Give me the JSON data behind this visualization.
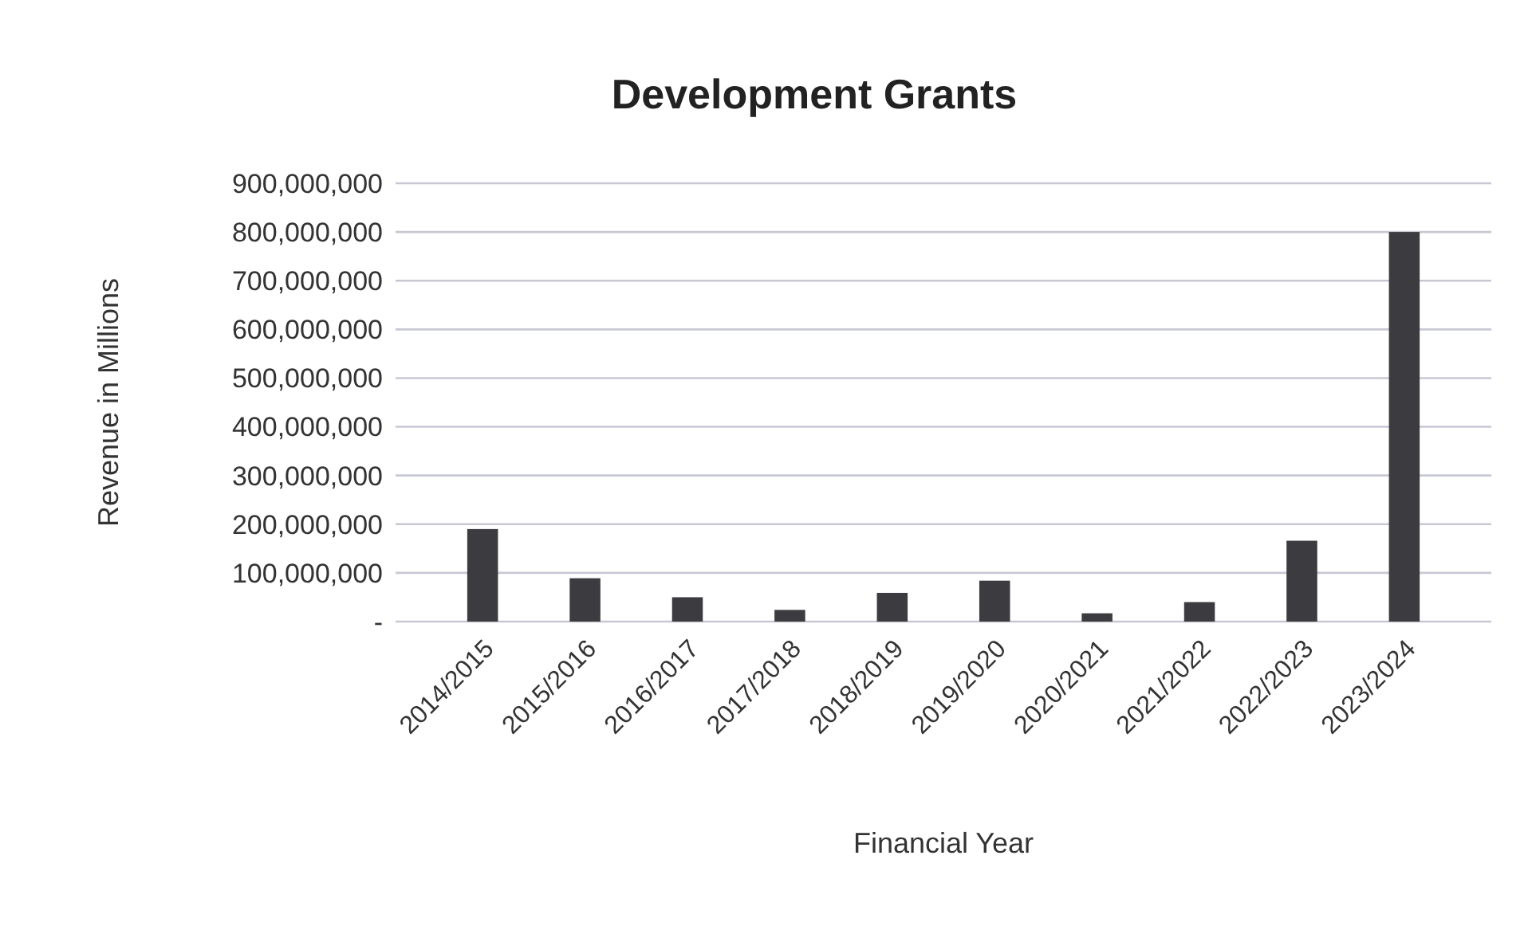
{
  "chart_data": {
    "type": "bar",
    "title": "Development Grants",
    "xlabel": "Financial Year",
    "ylabel": "Revenue in Millions",
    "categories": [
      "2014/2015",
      "2015/2016",
      "2016/2017",
      "2017/2018",
      "2018/2019",
      "2019/2020",
      "2020/2021",
      "2021/2022",
      "2022/2023",
      "2023/2024"
    ],
    "values": [
      190000000,
      89000000,
      50000000,
      24000000,
      59000000,
      84000000,
      17000000,
      40000000,
      166000000,
      800000000
    ],
    "color": "#3b3b40",
    "ylim": [
      0,
      900000000
    ],
    "yticks": [
      {
        "value": 0,
        "label": "-"
      },
      {
        "value": 100000000,
        "label": "100,000,000"
      },
      {
        "value": 200000000,
        "label": "200,000,000"
      },
      {
        "value": 300000000,
        "label": "300,000,000"
      },
      {
        "value": 400000000,
        "label": "400,000,000"
      },
      {
        "value": 500000000,
        "label": "500,000,000"
      },
      {
        "value": 600000000,
        "label": "600,000,000"
      },
      {
        "value": 700000000,
        "label": "700,000,000"
      },
      {
        "value": 800000000,
        "label": "800,000,000"
      },
      {
        "value": 900000000,
        "label": "900,000,000"
      }
    ],
    "grid": "y"
  }
}
